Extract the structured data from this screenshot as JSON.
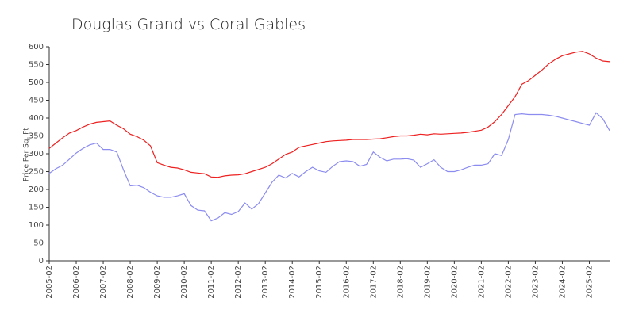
{
  "chart_data": {
    "type": "line",
    "title": "Douglas Grand vs Coral Gables",
    "y_label": "Price Per Sq. Ft",
    "x": [
      "2005-02",
      "2005-05",
      "2005-08",
      "2005-11",
      "2006-02",
      "2006-05",
      "2006-08",
      "2006-11",
      "2007-02",
      "2007-05",
      "2007-08",
      "2007-11",
      "2008-02",
      "2008-05",
      "2008-08",
      "2008-11",
      "2009-02",
      "2009-05",
      "2009-08",
      "2009-11",
      "2010-02",
      "2010-05",
      "2010-08",
      "2010-11",
      "2011-02",
      "2011-05",
      "2011-08",
      "2011-11",
      "2012-02",
      "2012-05",
      "2012-08",
      "2012-11",
      "2013-02",
      "2013-05",
      "2013-08",
      "2013-11",
      "2014-02",
      "2014-05",
      "2014-08",
      "2014-11",
      "2015-02",
      "2015-05",
      "2015-08",
      "2015-11",
      "2016-02",
      "2016-05",
      "2016-08",
      "2016-11",
      "2017-02",
      "2017-05",
      "2017-08",
      "2017-11",
      "2018-02",
      "2018-05",
      "2018-08",
      "2018-11",
      "2019-02",
      "2019-05",
      "2019-08",
      "2019-11",
      "2020-02",
      "2020-05",
      "2020-08",
      "2020-11",
      "2021-02",
      "2021-05",
      "2021-08",
      "2021-11",
      "2022-02",
      "2022-05",
      "2022-08",
      "2022-11",
      "2023-02",
      "2023-05",
      "2023-08",
      "2023-11",
      "2024-02",
      "2024-05",
      "2024-08",
      "2024-11",
      "2025-02",
      "2025-05",
      "2025-08",
      "2025-11"
    ],
    "series": [
      {
        "color": "#ee2020",
        "values": [
          315,
          330,
          345,
          358,
          365,
          375,
          383,
          388,
          390,
          392,
          380,
          370,
          355,
          348,
          338,
          322,
          275,
          268,
          262,
          260,
          255,
          248,
          246,
          244,
          235,
          234,
          238,
          240,
          241,
          244,
          250,
          256,
          262,
          272,
          285,
          298,
          305,
          318,
          322,
          326,
          330,
          334,
          336,
          337,
          338,
          340,
          340,
          340,
          341,
          342,
          345,
          348,
          350,
          350,
          352,
          355,
          353,
          356,
          355,
          356,
          357,
          358,
          360,
          363,
          366,
          375,
          390,
          410,
          435,
          460,
          495,
          505,
          520,
          535,
          552,
          565,
          575,
          580,
          585,
          587,
          580,
          568,
          560,
          558
        ]
      },
      {
        "color": "#8c8cf0",
        "values": [
          245,
          258,
          268,
          285,
          302,
          315,
          325,
          330,
          312,
          312,
          305,
          255,
          210,
          212,
          205,
          192,
          182,
          178,
          178,
          182,
          188,
          155,
          142,
          140,
          112,
          120,
          135,
          130,
          138,
          162,
          145,
          160,
          190,
          220,
          240,
          232,
          245,
          235,
          250,
          262,
          252,
          248,
          265,
          278,
          280,
          278,
          265,
          270,
          305,
          290,
          280,
          285,
          285,
          286,
          282,
          262,
          272,
          283,
          262,
          250,
          250,
          255,
          262,
          268,
          268,
          272,
          300,
          295,
          340,
          410,
          412,
          410,
          410,
          410,
          408,
          405,
          400,
          395,
          390,
          385,
          380,
          415,
          398,
          365
        ]
      }
    ],
    "xlim": [
      "2005-02",
      "2025-11"
    ],
    "xticks": [
      "2005-02",
      "2006-02",
      "2007-02",
      "2008-02",
      "2009-02",
      "2010-02",
      "2011-02",
      "2012-02",
      "2013-02",
      "2014-02",
      "2015-02",
      "2016-02",
      "2017-02",
      "2018-02",
      "2019-02",
      "2020-02",
      "2021-02",
      "2022-02",
      "2023-02",
      "2024-02",
      "2025-02"
    ],
    "ylim": [
      0,
      600
    ],
    "yticks": [
      0,
      50,
      100,
      150,
      200,
      250,
      300,
      350,
      400,
      450,
      500,
      550,
      600
    ]
  }
}
